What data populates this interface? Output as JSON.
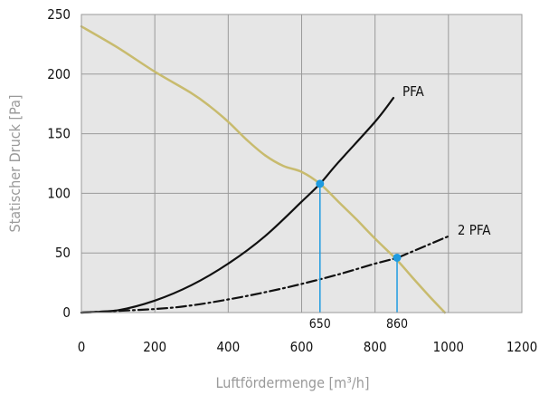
{
  "chart_data": {
    "type": "line",
    "xlabel": "Luftfördermenge [m³/h]",
    "ylabel": "Statischer Druck [Pa]",
    "xlim": [
      0,
      1200
    ],
    "ylim": [
      0,
      250
    ],
    "x_ticks": [
      0,
      200,
      400,
      600,
      800,
      1000,
      1200
    ],
    "y_ticks": [
      0,
      50,
      100,
      150,
      200,
      250
    ],
    "grid": true,
    "background": "#e6e6e6",
    "series": [
      {
        "id": "fan",
        "name": "",
        "color": "#c8bb6e",
        "style": "solid",
        "points": [
          [
            0,
            240
          ],
          [
            100,
            222
          ],
          [
            200,
            202
          ],
          [
            300,
            184
          ],
          [
            350,
            173
          ],
          [
            400,
            160
          ],
          [
            450,
            145
          ],
          [
            500,
            132
          ],
          [
            550,
            123
          ],
          [
            600,
            118
          ],
          [
            650,
            108
          ],
          [
            700,
            93
          ],
          [
            750,
            78
          ],
          [
            800,
            62
          ],
          [
            860,
            44
          ],
          [
            900,
            30
          ],
          [
            950,
            13
          ],
          [
            990,
            0
          ]
        ]
      },
      {
        "id": "pfa",
        "name": "PFA",
        "color": "#111111",
        "style": "solid",
        "points": [
          [
            0,
            0
          ],
          [
            100,
            2
          ],
          [
            200,
            10
          ],
          [
            300,
            23
          ],
          [
            400,
            41
          ],
          [
            500,
            64
          ],
          [
            600,
            93
          ],
          [
            650,
            108
          ],
          [
            700,
            126
          ],
          [
            800,
            160
          ],
          [
            850,
            180
          ]
        ]
      },
      {
        "id": "pfa2",
        "name": "2 PFA",
        "color": "#111111",
        "style": "dashdot",
        "points": [
          [
            0,
            0
          ],
          [
            200,
            3
          ],
          [
            300,
            6
          ],
          [
            400,
            11
          ],
          [
            500,
            17
          ],
          [
            600,
            24
          ],
          [
            700,
            32
          ],
          [
            800,
            41
          ],
          [
            860,
            46
          ],
          [
            900,
            51
          ],
          [
            1000,
            64
          ]
        ]
      }
    ],
    "operating_points": [
      {
        "x": 650,
        "y": 108,
        "label": "650",
        "color": "#1e9be0"
      },
      {
        "x": 860,
        "y": 46,
        "label": "860",
        "color": "#1e9be0"
      }
    ]
  }
}
